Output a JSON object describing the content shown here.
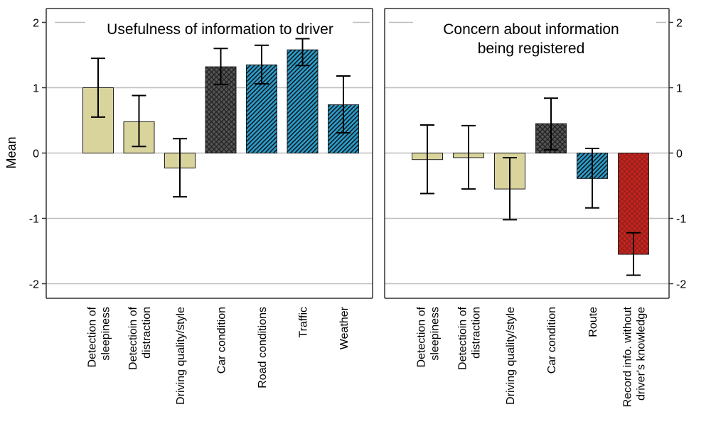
{
  "chart_data": {
    "type": "bar",
    "ylabel": "Mean",
    "ylim": [
      -2.15,
      2.3
    ],
    "yticks": [
      "2",
      "1",
      "0",
      "-1",
      "-2"
    ],
    "ytick_values": [
      2,
      1,
      0,
      -1,
      -2
    ],
    "grid": true,
    "colors": {
      "beige": "#d9d39c",
      "dark": "#555555",
      "blue": "#2a9bc9",
      "red": "#c9231d",
      "grid": "#bdbdbd",
      "frame": "#333333"
    },
    "panels": [
      {
        "title": "Usefulness of information to driver",
        "categories": [
          [
            "Detection of",
            "sleepiness"
          ],
          [
            "Detectioin of",
            "distraction"
          ],
          [
            "Driving quality/style"
          ],
          [
            "Car condition"
          ],
          [
            "Road conditions"
          ],
          [
            "Traffic"
          ],
          [
            "Weather"
          ]
        ],
        "values": [
          1.0,
          0.48,
          -0.23,
          1.32,
          1.35,
          1.58,
          0.74
        ],
        "error_low": [
          0.55,
          0.1,
          -0.67,
          1.05,
          1.06,
          1.34,
          0.31
        ],
        "error_high": [
          1.45,
          0.88,
          0.22,
          1.6,
          1.65,
          1.75,
          1.18
        ],
        "fill": [
          "beige",
          "beige",
          "beige",
          "dark",
          "blue",
          "blue",
          "blue"
        ],
        "pattern": [
          "none",
          "none",
          "none",
          "cross",
          "diag",
          "diag",
          "diag"
        ]
      },
      {
        "title": "Concern about information being registered",
        "title_lines": [
          "Concern about information",
          "being registered"
        ],
        "categories": [
          [
            "Detection of",
            "sleepiness"
          ],
          [
            "Detectioin of",
            "distraction"
          ],
          [
            "Driving quality/style"
          ],
          [
            "Car condition"
          ],
          [
            "Route"
          ],
          [
            "Record info. without",
            "driver's knowledge"
          ]
        ],
        "values": [
          -0.1,
          -0.07,
          -0.55,
          0.45,
          -0.39,
          -1.55
        ],
        "error_low": [
          -0.62,
          -0.55,
          -1.02,
          0.05,
          -0.84,
          -1.87
        ],
        "error_high": [
          0.43,
          0.42,
          -0.07,
          0.84,
          0.07,
          -1.22
        ],
        "fill": [
          "beige",
          "beige",
          "beige",
          "dark",
          "blue",
          "red"
        ],
        "pattern": [
          "none",
          "none",
          "none",
          "cross",
          "diag",
          "cross"
        ]
      }
    ]
  }
}
